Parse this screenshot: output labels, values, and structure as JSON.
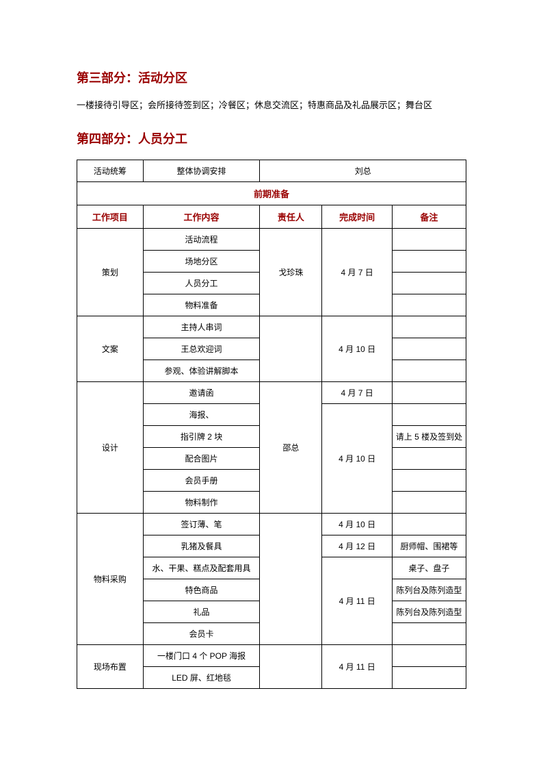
{
  "section3": {
    "title": "第三部分：活动分区",
    "text": "一楼接待引导区；会所接待签到区；冷餐区；休息交流区；特惠商品及礼品展示区；舞台区"
  },
  "section4": {
    "title": "第四部分：人员分工",
    "topRow": {
      "c1": "活动统筹",
      "c2": "整体协调安排",
      "c3": "刘总"
    },
    "prepHeader": "前期准备",
    "headers": {
      "c1": "工作项目",
      "c2": "工作内容",
      "c3": "责任人",
      "c4": "完成时间",
      "c5": "备注"
    },
    "planning": {
      "label": "策划",
      "items": [
        "活动流程",
        "场地分区",
        "人员分工",
        "物料准备"
      ],
      "person": "戈珍珠",
      "date": "4 月 7 日"
    },
    "copywriting": {
      "label": "文案",
      "items": [
        "主持人串词",
        "王总欢迎词",
        "参观、体验讲解脚本"
      ],
      "date": "4 月 10 日"
    },
    "design": {
      "label": "设计",
      "items": [
        "邀请函",
        "海报、",
        "指引牌 2 块",
        "配合图片",
        "会员手册",
        "物料制作"
      ],
      "person": "邵总",
      "date1": "4 月 7 日",
      "date2": "4 月 10 日",
      "note": "请上 5 楼及签到处"
    },
    "procurement": {
      "label": "物料采购",
      "items": [
        "签订薄、笔",
        "乳猪及餐具",
        "水、干果、糕点及配套用具",
        "特色商品",
        "礼品",
        "会员卡"
      ],
      "date1": "4 月 10 日",
      "date2": "4 月 12 日",
      "date3": "4 月 11 日",
      "note2": "厨师帽、围裙等",
      "note3": "桌子、盘子",
      "note4": "陈列台及陈列造型",
      "note5": "陈列台及陈列造型"
    },
    "setup": {
      "label": "现场布置",
      "items": [
        "一楼门口 4 个 POP 海报",
        "LED 屏、红地毯"
      ],
      "date": "4 月 11 日"
    }
  }
}
